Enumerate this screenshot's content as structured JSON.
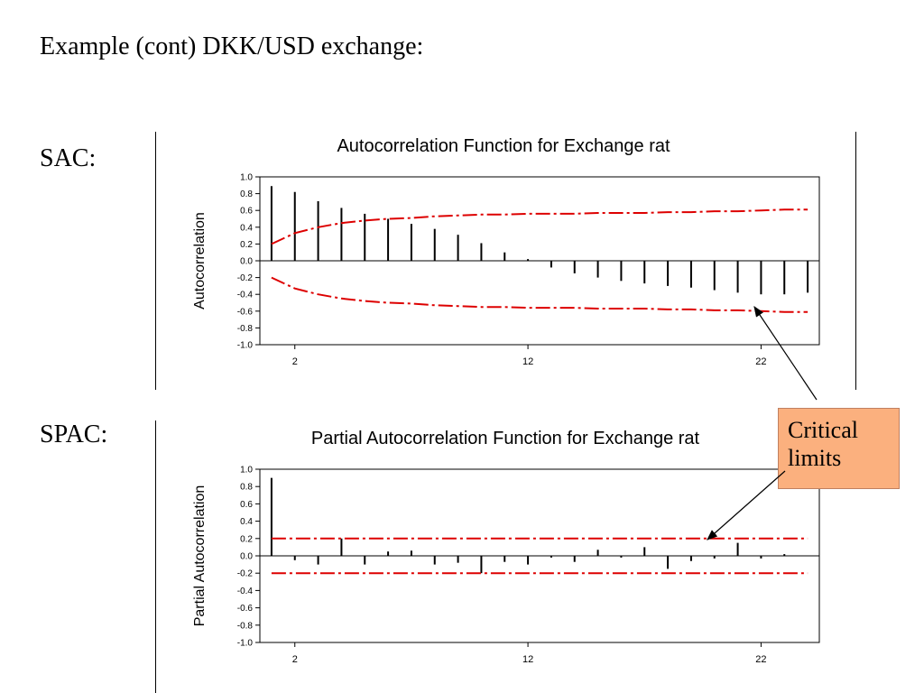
{
  "slide": {
    "title": "Example (cont) DKK/USD exchange:",
    "sac_label": "SAC:",
    "spac_label": "SPAC:",
    "callout_line1": "Critical",
    "callout_line2": "limits"
  },
  "colors": {
    "bars": "#000000",
    "limits": "#dd0000",
    "callout_fill": "#fbb07e"
  },
  "chart_data": [
    {
      "type": "bar",
      "title": "Autocorrelation Function for Exchange rat",
      "ylabel": "Autocorrelation",
      "xlabel": "",
      "ylim": [
        -1.0,
        1.0
      ],
      "xlim": [
        0.5,
        24.5
      ],
      "y_ticks": [
        1.0,
        0.8,
        0.6,
        0.4,
        0.2,
        0.0,
        -0.2,
        -0.4,
        -0.6,
        -0.8,
        -1.0
      ],
      "x_ticks": [
        2,
        12,
        22
      ],
      "lags": [
        1,
        2,
        3,
        4,
        5,
        6,
        7,
        8,
        9,
        10,
        11,
        12,
        13,
        14,
        15,
        16,
        17,
        18,
        19,
        20,
        21,
        22,
        23,
        24
      ],
      "values": [
        0.89,
        0.82,
        0.71,
        0.63,
        0.56,
        0.5,
        0.44,
        0.38,
        0.31,
        0.21,
        0.1,
        0.02,
        -0.08,
        -0.15,
        -0.2,
        -0.24,
        -0.27,
        -0.3,
        -0.32,
        -0.35,
        -0.38,
        -0.4,
        -0.4,
        -0.38
      ],
      "critical_limits": [
        0.2,
        0.33,
        0.4,
        0.45,
        0.48,
        0.5,
        0.51,
        0.53,
        0.54,
        0.55,
        0.55,
        0.56,
        0.56,
        0.56,
        0.57,
        0.57,
        0.57,
        0.58,
        0.58,
        0.59,
        0.59,
        0.6,
        0.61,
        0.61
      ]
    },
    {
      "type": "bar",
      "title": "Partial Autocorrelation Function for Exchange rat",
      "ylabel": "Partial Autocorrelation",
      "xlabel": "",
      "ylim": [
        -1.0,
        1.0
      ],
      "xlim": [
        0.5,
        24.5
      ],
      "y_ticks": [
        1.0,
        0.8,
        0.6,
        0.4,
        0.2,
        0.0,
        -0.2,
        -0.4,
        -0.6,
        -0.8,
        -1.0
      ],
      "x_ticks": [
        2,
        12,
        22
      ],
      "lags": [
        1,
        2,
        3,
        4,
        5,
        6,
        7,
        8,
        9,
        10,
        11,
        12,
        13,
        14,
        15,
        16,
        17,
        18,
        19,
        20,
        21,
        22,
        23,
        24
      ],
      "values": [
        0.9,
        -0.05,
        -0.1,
        0.2,
        -0.1,
        0.05,
        0.06,
        -0.1,
        -0.08,
        -0.2,
        -0.07,
        -0.1,
        -0.02,
        -0.07,
        0.07,
        -0.02,
        0.1,
        -0.15,
        -0.06,
        -0.03,
        0.15,
        -0.03,
        0.02,
        0.0
      ],
      "critical_limits": [
        0.2,
        0.2,
        0.2,
        0.2,
        0.2,
        0.2,
        0.2,
        0.2,
        0.2,
        0.2,
        0.2,
        0.2,
        0.2,
        0.2,
        0.2,
        0.2,
        0.2,
        0.2,
        0.2,
        0.2,
        0.2,
        0.2,
        0.2,
        0.2
      ]
    }
  ]
}
